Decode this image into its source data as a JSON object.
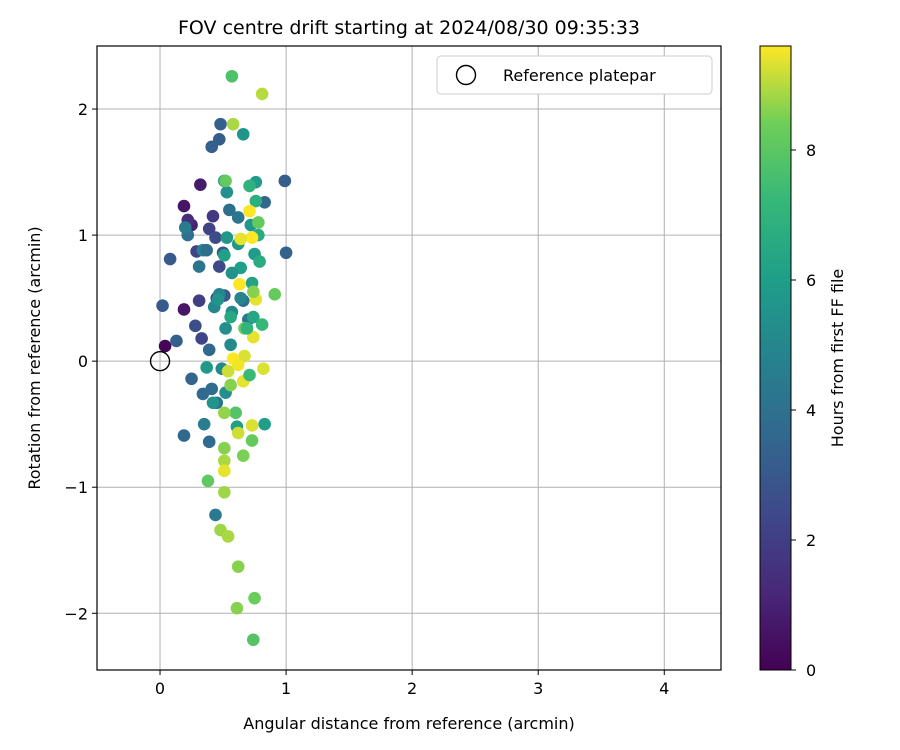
{
  "chart_data": {
    "type": "scatter",
    "title": "FOV centre drift starting at 2024/08/30 09:35:33",
    "xlabel": "Angular distance from reference (arcmin)",
    "ylabel": "Rotation from reference (arcmin)",
    "xlim": [
      -0.5,
      4.45
    ],
    "ylim": [
      -2.45,
      2.5
    ],
    "xticks": [
      0,
      1,
      2,
      3,
      4
    ],
    "yticks": [
      -2,
      -1,
      0,
      1,
      2
    ],
    "xtick_labels": [
      "0",
      "1",
      "2",
      "3",
      "4"
    ],
    "ytick_labels": [
      "−2",
      "−1",
      "0",
      "1",
      "2"
    ],
    "grid": true,
    "legend": {
      "placement": "top-right",
      "entries": [
        "Reference platepar"
      ]
    },
    "reference_point": {
      "name": "Reference platepar",
      "x": 0,
      "y": 0
    },
    "colorbar": {
      "label": "Hours from first FF file",
      "range": [
        0,
        9.6
      ],
      "ticks": [
        0,
        2,
        4,
        6,
        8
      ],
      "tick_labels": [
        "0",
        "2",
        "4",
        "6",
        "8"
      ],
      "colormap": "viridis"
    },
    "points": [
      [
        0.04,
        0.12,
        0.1
      ],
      [
        0.19,
        0.41,
        0.6
      ],
      [
        0.19,
        1.23,
        0.6
      ],
      [
        0.32,
        1.4,
        0.8
      ],
      [
        0.25,
        1.08,
        1.0
      ],
      [
        0.22,
        1.12,
        1.4
      ],
      [
        0.29,
        0.87,
        2.2
      ],
      [
        0.31,
        0.48,
        2.0
      ],
      [
        0.33,
        0.18,
        2.3
      ],
      [
        0.28,
        0.28,
        2.6
      ],
      [
        0.41,
        1.7,
        3.3
      ],
      [
        0.47,
        1.76,
        3.2
      ],
      [
        0.48,
        1.88,
        3.3
      ],
      [
        0.42,
        1.15,
        1.8
      ],
      [
        0.39,
        1.05,
        2.1
      ],
      [
        0.44,
        0.98,
        2.5
      ],
      [
        0.47,
        0.75,
        2.4
      ],
      [
        0.5,
        0.86,
        2.8
      ],
      [
        0.45,
        0.5,
        2.6
      ],
      [
        0.51,
        0.52,
        3.0
      ],
      [
        0.02,
        0.44,
        3.0
      ],
      [
        0.08,
        0.81,
        3.1
      ],
      [
        0.13,
        0.16,
        3.3
      ],
      [
        0.25,
        -0.14,
        3.5
      ],
      [
        0.19,
        -0.59,
        3.6
      ],
      [
        0.39,
        -0.64,
        3.7
      ],
      [
        0.39,
        0.09,
        3.6
      ],
      [
        0.34,
        -0.26,
        3.7
      ],
      [
        0.41,
        -0.22,
        3.8
      ],
      [
        0.45,
        -0.33,
        4.0
      ],
      [
        0.44,
        -1.22,
        4.4
      ],
      [
        0.35,
        -0.5,
        4.6
      ],
      [
        0.99,
        1.43,
        3.2
      ],
      [
        1.0,
        0.86,
        3.4
      ],
      [
        0.83,
        1.26,
        3.6
      ],
      [
        0.55,
        1.2,
        3.9
      ],
      [
        0.62,
        1.14,
        4.2
      ],
      [
        0.66,
        0.48,
        3.8
      ],
      [
        0.7,
        0.33,
        4.3
      ],
      [
        0.22,
        1.0,
        4.0
      ],
      [
        0.2,
        1.06,
        4.5
      ],
      [
        0.31,
        0.75,
        4.2
      ],
      [
        0.34,
        0.88,
        4.8
      ],
      [
        0.47,
        0.53,
        4.9
      ],
      [
        0.43,
        0.43,
        5.0
      ],
      [
        0.57,
        0.39,
        5.1
      ],
      [
        0.52,
        0.26,
        5.3
      ],
      [
        0.56,
        0.13,
        5.2
      ],
      [
        0.49,
        -0.06,
        5.1
      ],
      [
        0.52,
        -0.25,
        5.3
      ],
      [
        0.53,
        1.34,
        5.4
      ],
      [
        0.51,
        1.43,
        5.6
      ],
      [
        0.66,
        1.8,
        5.6
      ],
      [
        0.76,
        1.42,
        5.9
      ],
      [
        0.72,
        1.08,
        5.7
      ],
      [
        0.75,
        0.85,
        5.9
      ],
      [
        0.62,
        0.93,
        5.8
      ],
      [
        0.64,
        0.74,
        6.0
      ],
      [
        0.53,
        0.98,
        5.7
      ],
      [
        0.51,
        0.84,
        6.1
      ],
      [
        0.73,
        0.62,
        6.2
      ],
      [
        0.74,
        0.35,
        6.4
      ],
      [
        0.79,
        0.79,
        6.6
      ],
      [
        0.78,
        1.0,
        6.6
      ],
      [
        0.71,
        1.39,
        6.9
      ],
      [
        0.76,
        1.27,
        6.8
      ],
      [
        0.58,
        1.88,
        8.9
      ],
      [
        0.57,
        2.26,
        7.7
      ],
      [
        0.81,
        2.12,
        9.0
      ],
      [
        0.52,
        1.43,
        8.2
      ],
      [
        0.78,
        1.1,
        8.2
      ],
      [
        0.63,
        0.61,
        9.6
      ],
      [
        0.76,
        0.49,
        9.4
      ],
      [
        0.74,
        0.55,
        8.6
      ],
      [
        0.91,
        0.53,
        8.2
      ],
      [
        0.81,
        0.29,
        7.2
      ],
      [
        0.67,
        0.26,
        8.3
      ],
      [
        0.74,
        0.19,
        9.4
      ],
      [
        0.67,
        0.04,
        9.3
      ],
      [
        0.58,
        0.02,
        9.6
      ],
      [
        0.62,
        -0.03,
        9.5
      ],
      [
        0.54,
        -0.08,
        9.2
      ],
      [
        0.56,
        -0.19,
        8.6
      ],
      [
        0.66,
        -0.16,
        9.4
      ],
      [
        0.71,
        -0.11,
        7.3
      ],
      [
        0.82,
        -0.06,
        9.3
      ],
      [
        0.83,
        -0.5,
        6.0
      ],
      [
        0.61,
        -0.52,
        6.1
      ],
      [
        0.6,
        -0.41,
        7.9
      ],
      [
        0.51,
        -0.41,
        8.7
      ],
      [
        0.62,
        -0.57,
        9.2
      ],
      [
        0.73,
        -0.51,
        9.3
      ],
      [
        0.73,
        -0.63,
        8.2
      ],
      [
        0.66,
        -0.75,
        8.5
      ],
      [
        0.51,
        -0.69,
        8.6
      ],
      [
        0.51,
        -0.79,
        8.9
      ],
      [
        0.51,
        -0.87,
        9.4
      ],
      [
        0.38,
        -0.95,
        8.1
      ],
      [
        0.51,
        -1.04,
        8.8
      ],
      [
        0.48,
        -1.34,
        8.8
      ],
      [
        0.54,
        -1.39,
        8.9
      ],
      [
        0.62,
        -1.63,
        8.6
      ],
      [
        0.61,
        -1.96,
        8.6
      ],
      [
        0.75,
        -1.88,
        8.3
      ],
      [
        0.74,
        -2.21,
        7.9
      ],
      [
        0.71,
        1.19,
        9.6
      ],
      [
        0.73,
        0.98,
        9.6
      ],
      [
        0.64,
        0.97,
        9.4
      ],
      [
        0.37,
        0.88,
        3.9
      ],
      [
        0.46,
        0.49,
        5.6
      ],
      [
        0.56,
        0.35,
        6.5
      ],
      [
        0.64,
        0.5,
        4.9
      ],
      [
        0.69,
        0.26,
        7.0
      ],
      [
        0.37,
        -0.05,
        5.8
      ],
      [
        0.42,
        -0.33,
        5.6
      ],
      [
        0.57,
        0.7,
        5.5
      ]
    ]
  }
}
